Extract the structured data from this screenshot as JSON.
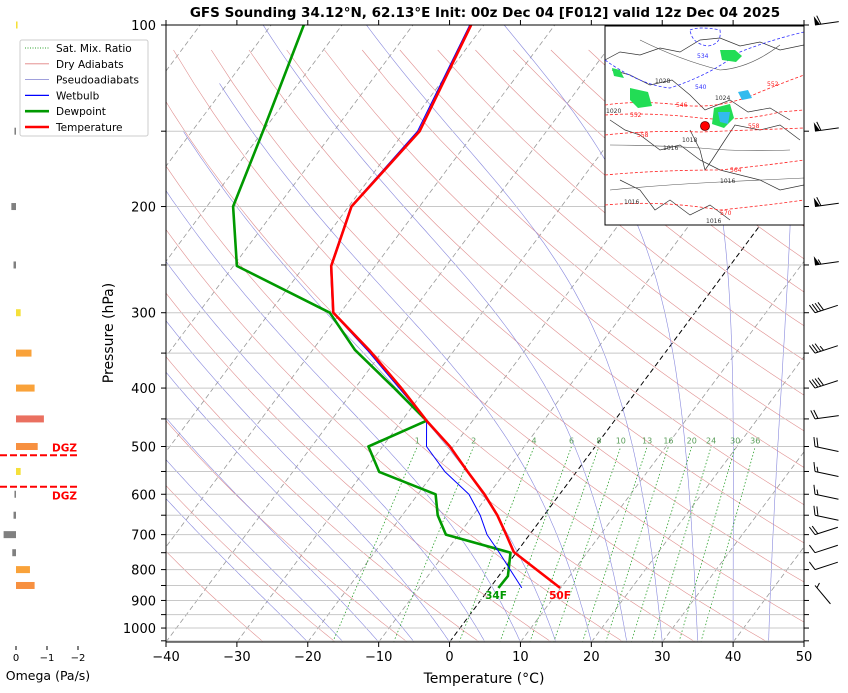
{
  "chart_data": {
    "type": "line",
    "subtype": "skew-t log-p sounding",
    "title": "GFS Sounding 34.12°N, 62.13°E Init: 00z Dec 04 [F012] valid 12z Dec 04 2025",
    "xlabel": "Temperature (°C)",
    "ylabel": "Pressure (hPa)",
    "xlim": [
      -40,
      50
    ],
    "ylim": [
      1055,
      100
    ],
    "x_ticks": [
      "−40",
      "−30",
      "−20",
      "−10",
      "0",
      "10",
      "20",
      "30",
      "40",
      "50"
    ],
    "y_ticks": [
      "100",
      "200",
      "300",
      "400",
      "500",
      "600",
      "700",
      "800",
      "900",
      "1000"
    ],
    "y_tick_values": [
      100,
      200,
      300,
      400,
      500,
      600,
      700,
      800,
      900,
      1000
    ],
    "x_tick_values": [
      -40,
      -30,
      -20,
      -10,
      0,
      10,
      20,
      30,
      40,
      50
    ],
    "legend": {
      "placement": "top-left",
      "entries": [
        {
          "label": "Sat. Mix. Ratio",
          "color": "#2ca02c",
          "style": "dotted"
        },
        {
          "label": "Dry Adiabats",
          "color": "#e08080",
          "style": "solid-thin"
        },
        {
          "label": "Pseudoadiabats",
          "color": "#8080d0",
          "style": "solid-thin"
        },
        {
          "label": "Wetbulb",
          "color": "#0000ff",
          "style": "solid"
        },
        {
          "label": "Dewpoint",
          "color": "#009900",
          "style": "solid-thick"
        },
        {
          "label": "Temperature",
          "color": "#ff0000",
          "style": "solid-thick"
        }
      ]
    },
    "series": [
      {
        "name": "Temperature",
        "color": "#ff0000",
        "points": [
          [
            858,
            9.9
          ],
          [
            748,
            -0.4
          ],
          [
            700,
            -3.3
          ],
          [
            650,
            -6.6
          ],
          [
            600,
            -10.6
          ],
          [
            551,
            -15.3
          ],
          [
            500,
            -20.5
          ],
          [
            453,
            -26.5
          ],
          [
            400,
            -33.5
          ],
          [
            346,
            -42.0
          ],
          [
            300,
            -51.0
          ],
          [
            251,
            -56.2
          ],
          [
            200,
            -59.6
          ],
          [
            150,
            -57.9
          ],
          [
            100,
            -61.8
          ]
        ]
      },
      {
        "name": "Dewpoint",
        "color": "#009900",
        "points": [
          [
            858,
            1.2
          ],
          [
            820,
            1.3
          ],
          [
            750,
            -0.8
          ],
          [
            700,
            -11.8
          ],
          [
            650,
            -15.0
          ],
          [
            600,
            -17.5
          ],
          [
            551,
            -27.8
          ],
          [
            500,
            -32.0
          ],
          [
            453,
            -26.5
          ],
          [
            400,
            -34.5
          ],
          [
            346,
            -44.0
          ],
          [
            300,
            -51.5
          ],
          [
            251,
            -69.5
          ],
          [
            200,
            -76.3
          ],
          [
            150,
            -80.0
          ],
          [
            100,
            -85.4
          ]
        ]
      },
      {
        "name": "Wetbulb",
        "color": "#0000ff",
        "points": [
          [
            858,
            4.5
          ],
          [
            748,
            -2.5
          ],
          [
            700,
            -6.0
          ],
          [
            650,
            -9.0
          ],
          [
            600,
            -12.8
          ],
          [
            551,
            -18.5
          ],
          [
            500,
            -23.8
          ],
          [
            453,
            -26.5
          ],
          [
            400,
            -33.8
          ],
          [
            346,
            -42.3
          ],
          [
            300,
            -51.1
          ],
          [
            251,
            -56.3
          ],
          [
            200,
            -59.7
          ],
          [
            150,
            -58.2
          ],
          [
            100,
            -62.0
          ]
        ]
      }
    ],
    "annotations": {
      "surface_temp_label": "50F",
      "surface_dewpoint_label": "34F",
      "dgz_label": "DGZ"
    },
    "mixing_ratio_labels": [
      "1",
      "2",
      "4",
      "6",
      "8",
      "10",
      "13",
      "16",
      "20",
      "24",
      "30",
      "36"
    ],
    "mixing_ratio_values": [
      1,
      2,
      4,
      6,
      8,
      10,
      13,
      16,
      20,
      24,
      30,
      36
    ],
    "winds": [
      {
        "p": 100,
        "speed_kt": 60,
        "direction": "W"
      },
      {
        "p": 150,
        "speed_kt": 60,
        "direction": "W"
      },
      {
        "p": 200,
        "speed_kt": 60,
        "direction": "W"
      },
      {
        "p": 250,
        "speed_kt": 55,
        "direction": "W"
      },
      {
        "p": 300,
        "speed_kt": 40,
        "direction": "WSW"
      },
      {
        "p": 350,
        "speed_kt": 35,
        "direction": "WSW"
      },
      {
        "p": 400,
        "speed_kt": 40,
        "direction": "WSW"
      },
      {
        "p": 450,
        "speed_kt": 20,
        "direction": "W"
      },
      {
        "p": 500,
        "speed_kt": 20,
        "direction": "WNW"
      },
      {
        "p": 550,
        "speed_kt": 15,
        "direction": "WNW"
      },
      {
        "p": 600,
        "speed_kt": 15,
        "direction": "WNW"
      },
      {
        "p": 650,
        "speed_kt": 20,
        "direction": "WNW"
      },
      {
        "p": 700,
        "speed_kt": 20,
        "direction": "WSW"
      },
      {
        "p": 750,
        "speed_kt": 10,
        "direction": "WSW"
      },
      {
        "p": 800,
        "speed_kt": 10,
        "direction": "WSW"
      },
      {
        "p": 850,
        "speed_kt": 5,
        "direction": "NW"
      }
    ],
    "omega": {
      "xlabel": "Omega (Pa/s)",
      "x_ticks": [
        "0",
        "−1",
        "−2"
      ],
      "x_tick_values": [
        0,
        -1,
        -2
      ],
      "bars": [
        {
          "p": 100,
          "value": -0.05,
          "color": "#f5e03a"
        },
        {
          "p": 150,
          "value": 0.05,
          "color": "#808080"
        },
        {
          "p": 200,
          "value": 0.15,
          "color": "#808080"
        },
        {
          "p": 250,
          "value": 0.08,
          "color": "#808080"
        },
        {
          "p": 300,
          "value": -0.15,
          "color": "#f5e03a"
        },
        {
          "p": 350,
          "value": -0.5,
          "color": "#f9a23a"
        },
        {
          "p": 400,
          "value": -0.6,
          "color": "#f9a23a"
        },
        {
          "p": 450,
          "value": -0.9,
          "color": "#ea7060"
        },
        {
          "p": 500,
          "value": -0.7,
          "color": "#f79040"
        },
        {
          "p": 550,
          "value": -0.15,
          "color": "#f5e03a"
        },
        {
          "p": 600,
          "value": 0.05,
          "color": "#808080"
        },
        {
          "p": 650,
          "value": 0.08,
          "color": "#808080"
        },
        {
          "p": 700,
          "value": 0.4,
          "color": "#808080"
        },
        {
          "p": 750,
          "value": 0.12,
          "color": "#808080"
        },
        {
          "p": 800,
          "value": -0.45,
          "color": "#f9a23a"
        },
        {
          "p": 850,
          "value": -0.6,
          "color": "#f79040"
        }
      ],
      "dgz_pressures": [
        517,
        583
      ]
    },
    "inset_map": {
      "labels": [
        "534",
        "540",
        "546",
        "552",
        "552",
        "558",
        "558",
        "564",
        "570",
        "1028",
        "1024",
        "1020",
        "1018",
        "1016",
        "1016",
        "1016",
        "1016"
      ]
    }
  }
}
